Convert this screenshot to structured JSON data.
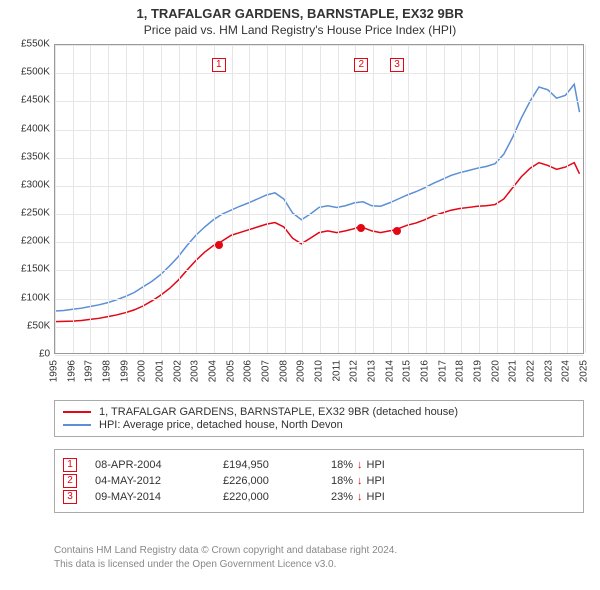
{
  "title_line1": "1, TRAFALGAR GARDENS, BARNSTAPLE, EX32 9BR",
  "title_line2": "Price paid vs. HM Land Registry's House Price Index (HPI)",
  "chart": {
    "type": "line",
    "background_color": "#ffffff",
    "grid_color": "#e6e6e6",
    "axis_color": "#999999",
    "tick_font_size": 10,
    "x": {
      "min": 1995,
      "max": 2025,
      "step": 1,
      "labels": [
        "1995",
        "1996",
        "1997",
        "1998",
        "1999",
        "2000",
        "2001",
        "2002",
        "2003",
        "2004",
        "2005",
        "2006",
        "2007",
        "2008",
        "2009",
        "2010",
        "2011",
        "2012",
        "2013",
        "2014",
        "2015",
        "2016",
        "2017",
        "2018",
        "2019",
        "2020",
        "2021",
        "2022",
        "2023",
        "2024",
        "2025"
      ]
    },
    "y": {
      "min": 0,
      "max": 550000,
      "step": 50000,
      "labels": [
        "£0",
        "£50K",
        "£100K",
        "£150K",
        "£200K",
        "£250K",
        "£300K",
        "£350K",
        "£400K",
        "£450K",
        "£500K",
        "£550K"
      ]
    },
    "series": [
      {
        "id": "property",
        "label": "1, TRAFALGAR GARDENS, BARNSTAPLE, EX32 9BR (detached house)",
        "color": "#e30613",
        "line_width": 1.5,
        "points": [
          [
            1995.0,
            56000
          ],
          [
            1995.5,
            56500
          ],
          [
            1996.0,
            57000
          ],
          [
            1996.5,
            58000
          ],
          [
            1997.0,
            60000
          ],
          [
            1997.5,
            62000
          ],
          [
            1998.0,
            65000
          ],
          [
            1998.5,
            68000
          ],
          [
            1999.0,
            72000
          ],
          [
            1999.5,
            77000
          ],
          [
            2000.0,
            84000
          ],
          [
            2000.5,
            93000
          ],
          [
            2001.0,
            103000
          ],
          [
            2001.5,
            115000
          ],
          [
            2002.0,
            130000
          ],
          [
            2002.5,
            148000
          ],
          [
            2003.0,
            165000
          ],
          [
            2003.5,
            180000
          ],
          [
            2004.0,
            192000
          ],
          [
            2004.27,
            194950
          ],
          [
            2004.5,
            200000
          ],
          [
            2005.0,
            210000
          ],
          [
            2005.5,
            215000
          ],
          [
            2006.0,
            220000
          ],
          [
            2006.5,
            225000
          ],
          [
            2007.0,
            230000
          ],
          [
            2007.5,
            233000
          ],
          [
            2008.0,
            225000
          ],
          [
            2008.5,
            205000
          ],
          [
            2009.0,
            195000
          ],
          [
            2009.5,
            205000
          ],
          [
            2010.0,
            215000
          ],
          [
            2010.5,
            218000
          ],
          [
            2011.0,
            215000
          ],
          [
            2011.5,
            218000
          ],
          [
            2012.0,
            222000
          ],
          [
            2012.34,
            226000
          ],
          [
            2012.5,
            224000
          ],
          [
            2013.0,
            218000
          ],
          [
            2013.5,
            215000
          ],
          [
            2014.0,
            218000
          ],
          [
            2014.36,
            220000
          ],
          [
            2014.5,
            222000
          ],
          [
            2015.0,
            228000
          ],
          [
            2015.5,
            232000
          ],
          [
            2016.0,
            238000
          ],
          [
            2016.5,
            245000
          ],
          [
            2017.0,
            250000
          ],
          [
            2017.5,
            255000
          ],
          [
            2018.0,
            258000
          ],
          [
            2018.5,
            260000
          ],
          [
            2019.0,
            262000
          ],
          [
            2019.5,
            263000
          ],
          [
            2020.0,
            265000
          ],
          [
            2020.5,
            275000
          ],
          [
            2021.0,
            295000
          ],
          [
            2021.5,
            315000
          ],
          [
            2022.0,
            330000
          ],
          [
            2022.5,
            340000
          ],
          [
            2023.0,
            335000
          ],
          [
            2023.5,
            328000
          ],
          [
            2024.0,
            332000
          ],
          [
            2024.5,
            340000
          ],
          [
            2024.8,
            320000
          ]
        ]
      },
      {
        "id": "hpi",
        "label": "HPI: Average price, detached house, North Devon",
        "color": "#5b8fd6",
        "line_width": 1.5,
        "points": [
          [
            1995.0,
            75000
          ],
          [
            1995.5,
            76000
          ],
          [
            1996.0,
            78000
          ],
          [
            1996.5,
            80000
          ],
          [
            1997.0,
            83000
          ],
          [
            1997.5,
            86000
          ],
          [
            1998.0,
            90000
          ],
          [
            1998.5,
            95000
          ],
          [
            1999.0,
            101000
          ],
          [
            1999.5,
            108000
          ],
          [
            2000.0,
            118000
          ],
          [
            2000.5,
            128000
          ],
          [
            2001.0,
            140000
          ],
          [
            2001.5,
            155000
          ],
          [
            2002.0,
            172000
          ],
          [
            2002.5,
            192000
          ],
          [
            2003.0,
            210000
          ],
          [
            2003.5,
            225000
          ],
          [
            2004.0,
            238000
          ],
          [
            2004.5,
            248000
          ],
          [
            2005.0,
            255000
          ],
          [
            2005.5,
            262000
          ],
          [
            2006.0,
            268000
          ],
          [
            2006.5,
            275000
          ],
          [
            2007.0,
            282000
          ],
          [
            2007.5,
            286000
          ],
          [
            2008.0,
            275000
          ],
          [
            2008.5,
            250000
          ],
          [
            2009.0,
            238000
          ],
          [
            2009.5,
            248000
          ],
          [
            2010.0,
            260000
          ],
          [
            2010.5,
            263000
          ],
          [
            2011.0,
            260000
          ],
          [
            2011.5,
            263000
          ],
          [
            2012.0,
            268000
          ],
          [
            2012.5,
            270000
          ],
          [
            2013.0,
            263000
          ],
          [
            2013.5,
            262000
          ],
          [
            2014.0,
            268000
          ],
          [
            2014.5,
            275000
          ],
          [
            2015.0,
            282000
          ],
          [
            2015.5,
            288000
          ],
          [
            2016.0,
            295000
          ],
          [
            2016.5,
            303000
          ],
          [
            2017.0,
            310000
          ],
          [
            2017.5,
            317000
          ],
          [
            2018.0,
            322000
          ],
          [
            2018.5,
            326000
          ],
          [
            2019.0,
            330000
          ],
          [
            2019.5,
            333000
          ],
          [
            2020.0,
            338000
          ],
          [
            2020.5,
            355000
          ],
          [
            2021.0,
            385000
          ],
          [
            2021.5,
            420000
          ],
          [
            2022.0,
            450000
          ],
          [
            2022.5,
            475000
          ],
          [
            2023.0,
            470000
          ],
          [
            2023.5,
            455000
          ],
          [
            2024.0,
            460000
          ],
          [
            2024.5,
            480000
          ],
          [
            2024.8,
            430000
          ]
        ]
      }
    ],
    "sale_markers": [
      {
        "idx": "1",
        "year": 2004.27,
        "box_y": 515000,
        "dot_y": 194950
      },
      {
        "idx": "2",
        "year": 2012.34,
        "box_y": 515000,
        "dot_y": 226000
      },
      {
        "idx": "3",
        "year": 2014.36,
        "box_y": 515000,
        "dot_y": 220000
      }
    ],
    "marker_box_border": "#e30613",
    "marker_dot_color": "#e30613"
  },
  "legend": {
    "border_color": "#aaaaaa",
    "items": [
      {
        "color": "#e30613",
        "label": "1, TRAFALGAR GARDENS, BARNSTAPLE, EX32 9BR (detached house)"
      },
      {
        "color": "#5b8fd6",
        "label": "HPI: Average price, detached house, North Devon"
      }
    ]
  },
  "sales": {
    "border_color": "#aaaaaa",
    "idx_border": "#e30613",
    "arrow_color": "#e30613",
    "rows": [
      {
        "idx": "1",
        "date": "08-APR-2004",
        "price": "£194,950",
        "delta_pct": "18%",
        "delta_dir": "↓",
        "delta_label": "HPI"
      },
      {
        "idx": "2",
        "date": "04-MAY-2012",
        "price": "£226,000",
        "delta_pct": "18%",
        "delta_dir": "↓",
        "delta_label": "HPI"
      },
      {
        "idx": "3",
        "date": "09-MAY-2014",
        "price": "£220,000",
        "delta_pct": "23%",
        "delta_dir": "↓",
        "delta_label": "HPI"
      }
    ]
  },
  "attribution": {
    "line1": "Contains HM Land Registry data © Crown copyright and database right 2024.",
    "line2": "This data is licensed under the Open Government Licence v3.0."
  }
}
